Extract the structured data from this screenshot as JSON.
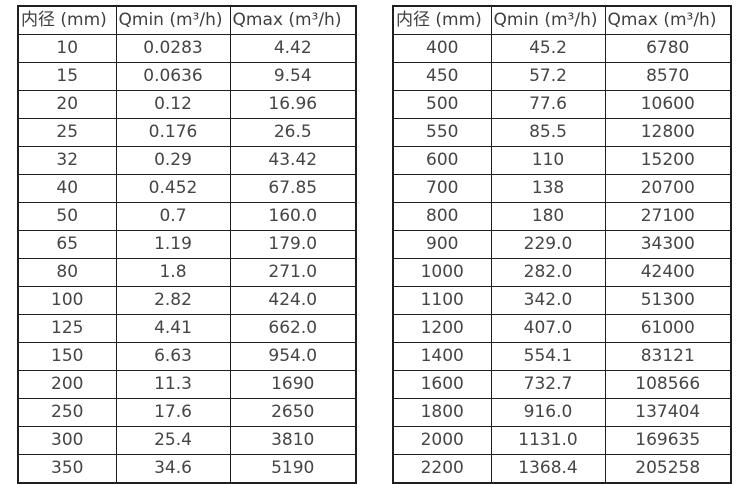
{
  "colors": {
    "background": "#ffffff",
    "border": "#1f1f1f",
    "text": "#454545"
  },
  "tables": [
    {
      "name": "flow-spec-small-diameters",
      "headers": [
        "内径 (mm)",
        "Qmin (m³/h)",
        "Qmax (m³/h)"
      ],
      "rows": [
        [
          "10",
          "0.0283",
          "4.42"
        ],
        [
          "15",
          "0.0636",
          "9.54"
        ],
        [
          "20",
          "0.12",
          "16.96"
        ],
        [
          "25",
          "0.176",
          "26.5"
        ],
        [
          "32",
          "0.29",
          "43.42"
        ],
        [
          "40",
          "0.452",
          "67.85"
        ],
        [
          "50",
          "0.7",
          "160.0"
        ],
        [
          "65",
          "1.19",
          "179.0"
        ],
        [
          "80",
          "1.8",
          "271.0"
        ],
        [
          "100",
          "2.82",
          "424.0"
        ],
        [
          "125",
          "4.41",
          "662.0"
        ],
        [
          "150",
          "6.63",
          "954.0"
        ],
        [
          "200",
          "11.3",
          "1690"
        ],
        [
          "250",
          "17.6",
          "2650"
        ],
        [
          "300",
          "25.4",
          "3810"
        ],
        [
          "350",
          "34.6",
          "5190"
        ]
      ]
    },
    {
      "name": "flow-spec-large-diameters",
      "headers": [
        "内径 (mm)",
        "Qmin (m³/h)",
        "Qmax (m³/h)"
      ],
      "rows": [
        [
          "400",
          "45.2",
          "6780"
        ],
        [
          "450",
          "57.2",
          "8570"
        ],
        [
          "500",
          "77.6",
          "10600"
        ],
        [
          "550",
          "85.5",
          "12800"
        ],
        [
          "600",
          "110",
          "15200"
        ],
        [
          "700",
          "138",
          "20700"
        ],
        [
          "800",
          "180",
          "27100"
        ],
        [
          "900",
          "229.0",
          "34300"
        ],
        [
          "1000",
          "282.0",
          "42400"
        ],
        [
          "1100",
          "342.0",
          "51300"
        ],
        [
          "1200",
          "407.0",
          "61000"
        ],
        [
          "1400",
          "554.1",
          "83121"
        ],
        [
          "1600",
          "732.7",
          "108566"
        ],
        [
          "1800",
          "916.0",
          "137404"
        ],
        [
          "2000",
          "1131.0",
          "169635"
        ],
        [
          "2200",
          "1368.4",
          "205258"
        ]
      ]
    }
  ]
}
